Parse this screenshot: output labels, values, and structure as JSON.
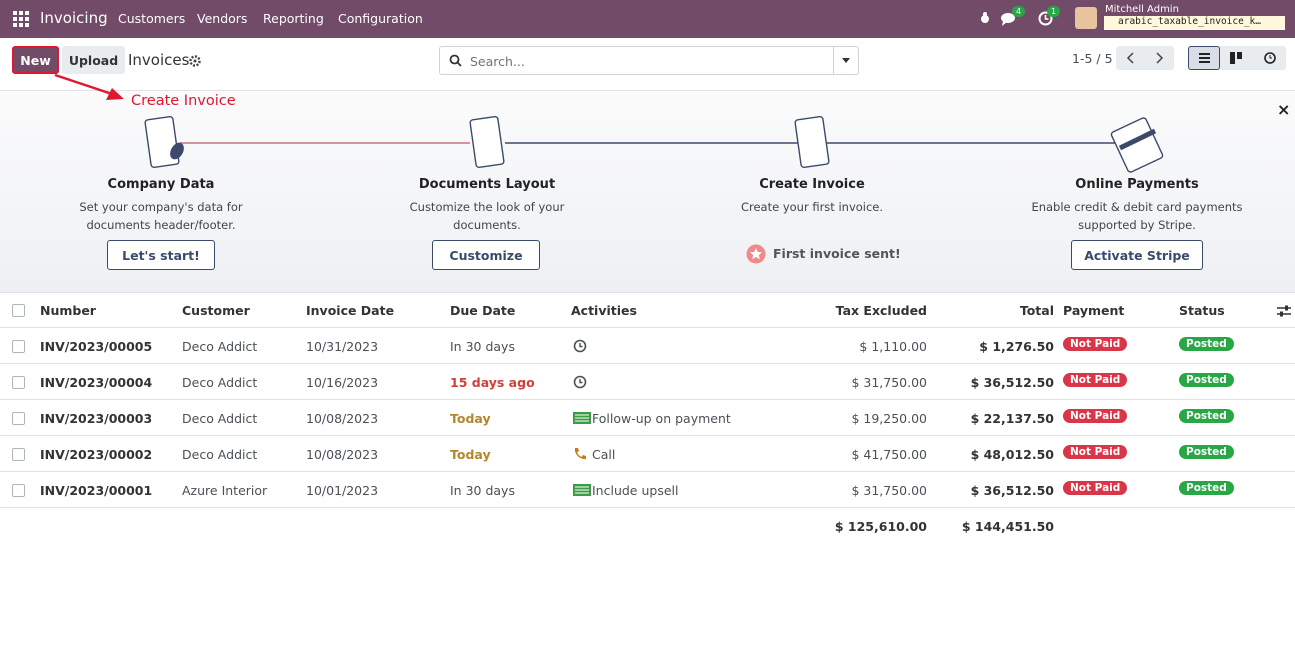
{
  "navbar": {
    "app": "Invoicing",
    "menu": [
      "Customers",
      "Vendors",
      "Reporting",
      "Configuration"
    ],
    "badges": [
      "4",
      "1"
    ],
    "user": "Mitchell Admin",
    "database": "arabic_taxable_invoice_k…"
  },
  "control": {
    "new": "New",
    "upload": "Upload",
    "title": "Invoices",
    "search": "Search...",
    "pager": "1-5 / 5"
  },
  "annotation": "Create Invoice",
  "onboarding": {
    "steps": [
      {
        "title": "Company Data",
        "text": "Set your company's data for documents header/footer.",
        "button": "Let's start!"
      },
      {
        "title": "Documents Layout",
        "text": "Customize the look of your documents.",
        "button": "Customize"
      },
      {
        "title": "Create Invoice",
        "text": "Create your first invoice.",
        "status": "First invoice sent!"
      },
      {
        "title": "Online Payments",
        "text": "Enable credit & debit card payments supported by Stripe.",
        "button": "Activate Stripe"
      }
    ]
  },
  "table": {
    "headers": [
      "Number",
      "Customer",
      "Invoice Date",
      "Due Date",
      "Activities",
      "Tax Excluded",
      "Total",
      "Payment",
      "Status"
    ],
    "rows": [
      {
        "number": "INV/2023/00005",
        "customer": "Deco Addict",
        "date": "10/31/2023",
        "due": "In 30 days",
        "due_color": "#495057",
        "activity": {
          "icon": "clock"
        },
        "tax_excluded": "$ 1,110.00",
        "total": "$ 1,276.50",
        "payment": "Not Paid",
        "status": "Posted"
      },
      {
        "number": "INV/2023/00004",
        "customer": "Deco Addict",
        "date": "10/16/2023",
        "due": "15 days ago",
        "due_color": "#d23f3a",
        "activity": {
          "icon": "clock"
        },
        "tax_excluded": "$ 31,750.00",
        "total": "$ 36,512.50",
        "payment": "Not Paid",
        "status": "Posted"
      },
      {
        "number": "INV/2023/00003",
        "customer": "Deco Addict",
        "date": "10/08/2023",
        "due": "Today",
        "due_color": "#b7852a",
        "activity": {
          "icon": "list",
          "label": "Follow-up on payment"
        },
        "tax_excluded": "$ 19,250.00",
        "total": "$ 22,137.50",
        "payment": "Not Paid",
        "status": "Posted"
      },
      {
        "number": "INV/2023/00002",
        "customer": "Deco Addict",
        "date": "10/08/2023",
        "due": "Today",
        "due_color": "#b7852a",
        "activity": {
          "icon": "phone",
          "label": "Call"
        },
        "tax_excluded": "$ 41,750.00",
        "total": "$ 48,012.50",
        "payment": "Not Paid",
        "status": "Posted"
      },
      {
        "number": "INV/2023/00001",
        "customer": "Azure Interior",
        "date": "10/01/2023",
        "due": "In 30 days",
        "due_color": "#495057",
        "activity": {
          "icon": "list",
          "label": "Include upsell"
        },
        "tax_excluded": "$ 31,750.00",
        "total": "$ 36,512.50",
        "payment": "Not Paid",
        "status": "Posted"
      }
    ],
    "totals": [
      "$ 125,610.00",
      "$ 144,451.50"
    ]
  }
}
